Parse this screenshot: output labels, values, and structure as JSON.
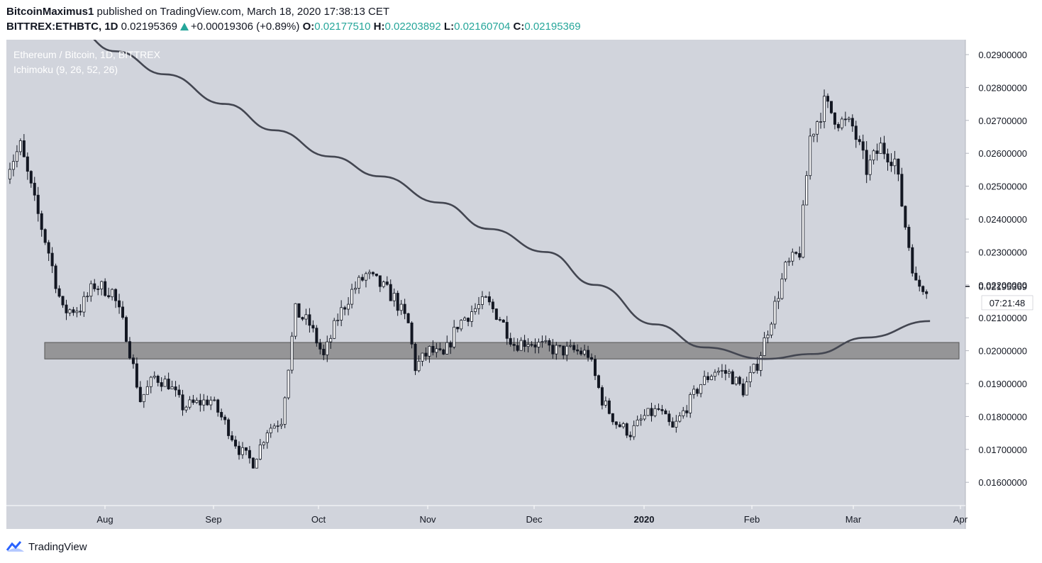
{
  "header": {
    "author": "BitcoinMaximus1",
    "published_text": "published on TradingView.com, March 18, 2020 17:38:13 CET",
    "symbol": "BITTREX:ETHBTC, 1D",
    "last_price": "0.02195369",
    "change": "+0.00019306 (+0.89%)",
    "open_label": "O:",
    "open_value": "0.02177510",
    "high_label": "H:",
    "high_value": "0.02203892",
    "low_label": "L:",
    "low_value": "0.02160704",
    "close_label": "C:",
    "close_value": "0.02195369"
  },
  "legend": {
    "title": "Ethereum / Bitcoin, 1D, BITTREX",
    "indicator": "Ichimoku (9, 26, 52, 26)"
  },
  "footer": {
    "brand": "TradingView"
  },
  "colors": {
    "plot_bg": "#d1d4dc",
    "candle": "#131722",
    "band_fill": "#808080",
    "ma_line": "#434651",
    "positive": "#26a69a"
  },
  "chart_data": {
    "type": "candlestick",
    "price_axis": {
      "ylim": [
        0.0152,
        0.0295
      ],
      "ticks": [
        "0.02900000",
        "0.02800000",
        "0.02700000",
        "0.02600000",
        "0.02500000",
        "0.02400000",
        "0.02300000",
        "0.02200000",
        "0.02100000",
        "0.02000000",
        "0.01900000",
        "0.01800000",
        "0.01700000",
        "0.01600000"
      ],
      "current_price_label": "0.02195369",
      "countdown_label": "07:21:48"
    },
    "time_axis": {
      "ticks": [
        "Aug",
        "Sep",
        "Oct",
        "Nov",
        "Dec",
        "2020",
        "Feb",
        "Mar",
        "Apr"
      ]
    },
    "support_band": {
      "low": 0.01975,
      "high": 0.02025
    },
    "moving_average": {
      "dates": [
        "2019-07-20",
        "2019-08-01",
        "2019-08-15",
        "2019-09-01",
        "2019-09-15",
        "2019-10-01",
        "2019-10-15",
        "2019-11-01",
        "2019-11-15",
        "2019-12-01",
        "2019-12-15",
        "2020-01-01",
        "2020-01-15",
        "2020-02-01",
        "2020-02-15",
        "2020-03-01",
        "2020-03-19"
      ],
      "values": [
        0.0298,
        0.0291,
        0.0284,
        0.0275,
        0.0267,
        0.0259,
        0.0253,
        0.0245,
        0.0237,
        0.023,
        0.022,
        0.0208,
        0.0201,
        0.01975,
        0.0199,
        0.0204,
        0.0209
      ]
    },
    "price_path": {
      "dates": [
        "2019-07-01",
        "2019-07-05",
        "2019-07-09",
        "2019-07-13",
        "2019-07-17",
        "2019-07-22",
        "2019-07-26",
        "2019-07-31",
        "2019-08-04",
        "2019-08-08",
        "2019-08-12",
        "2019-08-16",
        "2019-08-20",
        "2019-08-24",
        "2019-08-28",
        "2019-09-01",
        "2019-09-05",
        "2019-09-09",
        "2019-09-13",
        "2019-09-17",
        "2019-09-21",
        "2019-09-25",
        "2019-09-29",
        "2019-10-03",
        "2019-10-07",
        "2019-10-11",
        "2019-10-15",
        "2019-10-19",
        "2019-10-23",
        "2019-10-25",
        "2019-10-29",
        "2019-11-02",
        "2019-11-06",
        "2019-11-10",
        "2019-11-14",
        "2019-11-18",
        "2019-11-22",
        "2019-11-26",
        "2019-12-01",
        "2019-12-05",
        "2019-12-09",
        "2019-12-13",
        "2019-12-17",
        "2019-12-21",
        "2019-12-25",
        "2019-12-29",
        "2020-01-02",
        "2020-01-06",
        "2020-01-10",
        "2020-01-14",
        "2020-01-18",
        "2020-01-22",
        "2020-01-26",
        "2020-01-30",
        "2020-02-03",
        "2020-02-07",
        "2020-02-11",
        "2020-02-14",
        "2020-02-18",
        "2020-02-22",
        "2020-02-26",
        "2020-03-01",
        "2020-03-05",
        "2020-03-09",
        "2020-03-12",
        "2020-03-15",
        "2020-03-18"
      ],
      "values": [
        0.0255,
        0.0262,
        0.0245,
        0.023,
        0.0212,
        0.0213,
        0.022,
        0.0218,
        0.0205,
        0.0185,
        0.0192,
        0.019,
        0.0183,
        0.0184,
        0.0185,
        0.0178,
        0.017,
        0.0166,
        0.0176,
        0.0179,
        0.0212,
        0.0208,
        0.0198,
        0.021,
        0.0218,
        0.0223,
        0.022,
        0.0216,
        0.0208,
        0.0195,
        0.02,
        0.0198,
        0.0208,
        0.0212,
        0.0215,
        0.021,
        0.0202,
        0.0203,
        0.0201,
        0.02,
        0.02,
        0.0199,
        0.0185,
        0.0178,
        0.0175,
        0.018,
        0.0182,
        0.0176,
        0.0183,
        0.019,
        0.0194,
        0.0193,
        0.0188,
        0.0196,
        0.021,
        0.0225,
        0.023,
        0.0265,
        0.0275,
        0.027,
        0.0268,
        0.0255,
        0.0262,
        0.0258,
        0.0238,
        0.022,
        0.0219537
      ]
    }
  }
}
